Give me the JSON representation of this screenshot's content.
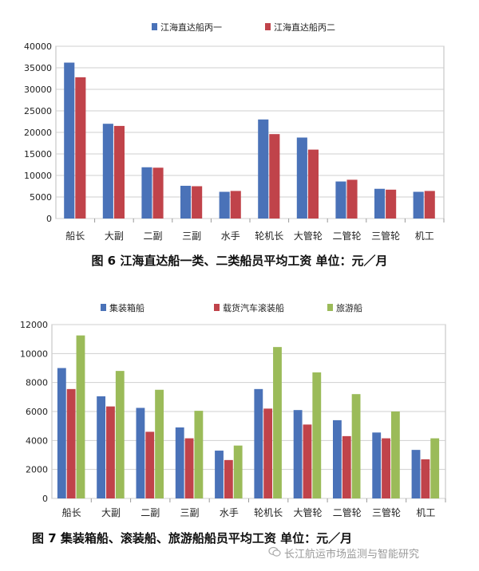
{
  "chart_data": [
    {
      "type": "bar",
      "title": "图 6  江海直达船一类、二类船员平均工资  单位：元／月",
      "categories": [
        "船长",
        "大副",
        "二副",
        "三副",
        "水手",
        "轮机长",
        "大管轮",
        "二管轮",
        "三管轮",
        "机工"
      ],
      "series": [
        {
          "name": "江海直达船丙一",
          "color": "#4a72b8",
          "values": [
            36200,
            22000,
            11900,
            7600,
            6200,
            23000,
            18800,
            8600,
            6900,
            6200
          ]
        },
        {
          "name": "江海直达船丙二",
          "color": "#c0434a",
          "values": [
            32800,
            21500,
            11800,
            7500,
            6400,
            19600,
            16000,
            9000,
            6700,
            6400
          ]
        }
      ],
      "ylim": [
        0,
        40000
      ],
      "yticks": [
        0,
        5000,
        10000,
        15000,
        20000,
        25000,
        30000,
        35000,
        40000
      ],
      "legend": "top"
    },
    {
      "type": "bar",
      "title": "图 7  集装箱船、滚装船、旅游船船员平均工资  单位：元／月",
      "categories": [
        "船长",
        "大副",
        "二副",
        "三副",
        "水手",
        "轮机长",
        "大管轮",
        "二管轮",
        "三管轮",
        "机工"
      ],
      "series": [
        {
          "name": "集装箱船",
          "color": "#4a72b8",
          "values": [
            9000,
            7050,
            6250,
            4900,
            3300,
            7550,
            6100,
            5400,
            4550,
            3350
          ]
        },
        {
          "name": "载货汽车滚装船",
          "color": "#c0434a",
          "values": [
            7550,
            6350,
            4600,
            4150,
            2650,
            6200,
            5100,
            4300,
            4150,
            2700
          ]
        },
        {
          "name": "旅游船",
          "color": "#9bbb59",
          "values": [
            11250,
            8800,
            7500,
            6050,
            3650,
            10450,
            8700,
            7200,
            6000,
            4150
          ]
        }
      ],
      "ylim": [
        0,
        12000
      ],
      "yticks": [
        0,
        2000,
        4000,
        6000,
        8000,
        10000,
        12000
      ],
      "legend": "top"
    }
  ],
  "captions": {
    "fig6": "图 6  江海直达船一类、二类船员平均工资  单位：元／月",
    "fig7": "图 7   集装箱船、滚装船、旅游船船员平均工资  单位：元／月"
  },
  "watermark": "长江航运市场监测与智能研究"
}
